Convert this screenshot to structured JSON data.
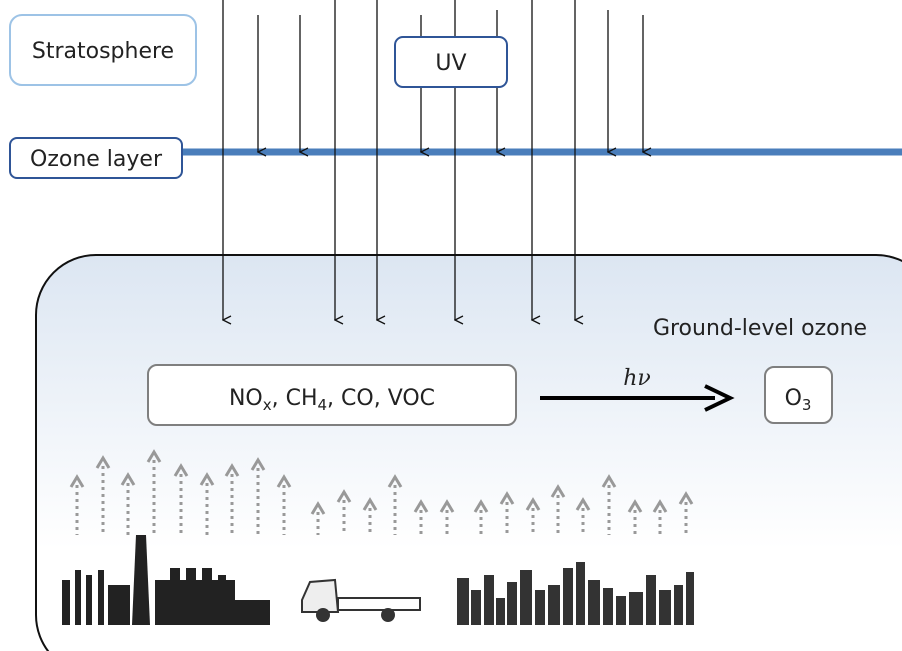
{
  "stratosphere": "Stratosphere",
  "uv": "UV",
  "ozone_layer": "Ozone layer",
  "ground_level_ozone": "Ground-level ozone",
  "precursors": [
    {
      "text": "NO"
    },
    {
      "sub": "x"
    },
    {
      "text": ", CH"
    },
    {
      "sub": "4"
    },
    {
      "text": ", CO, VOC"
    }
  ],
  "reaction_label": "hν",
  "product": [
    {
      "text": "O"
    },
    {
      "sub": "3"
    }
  ]
}
